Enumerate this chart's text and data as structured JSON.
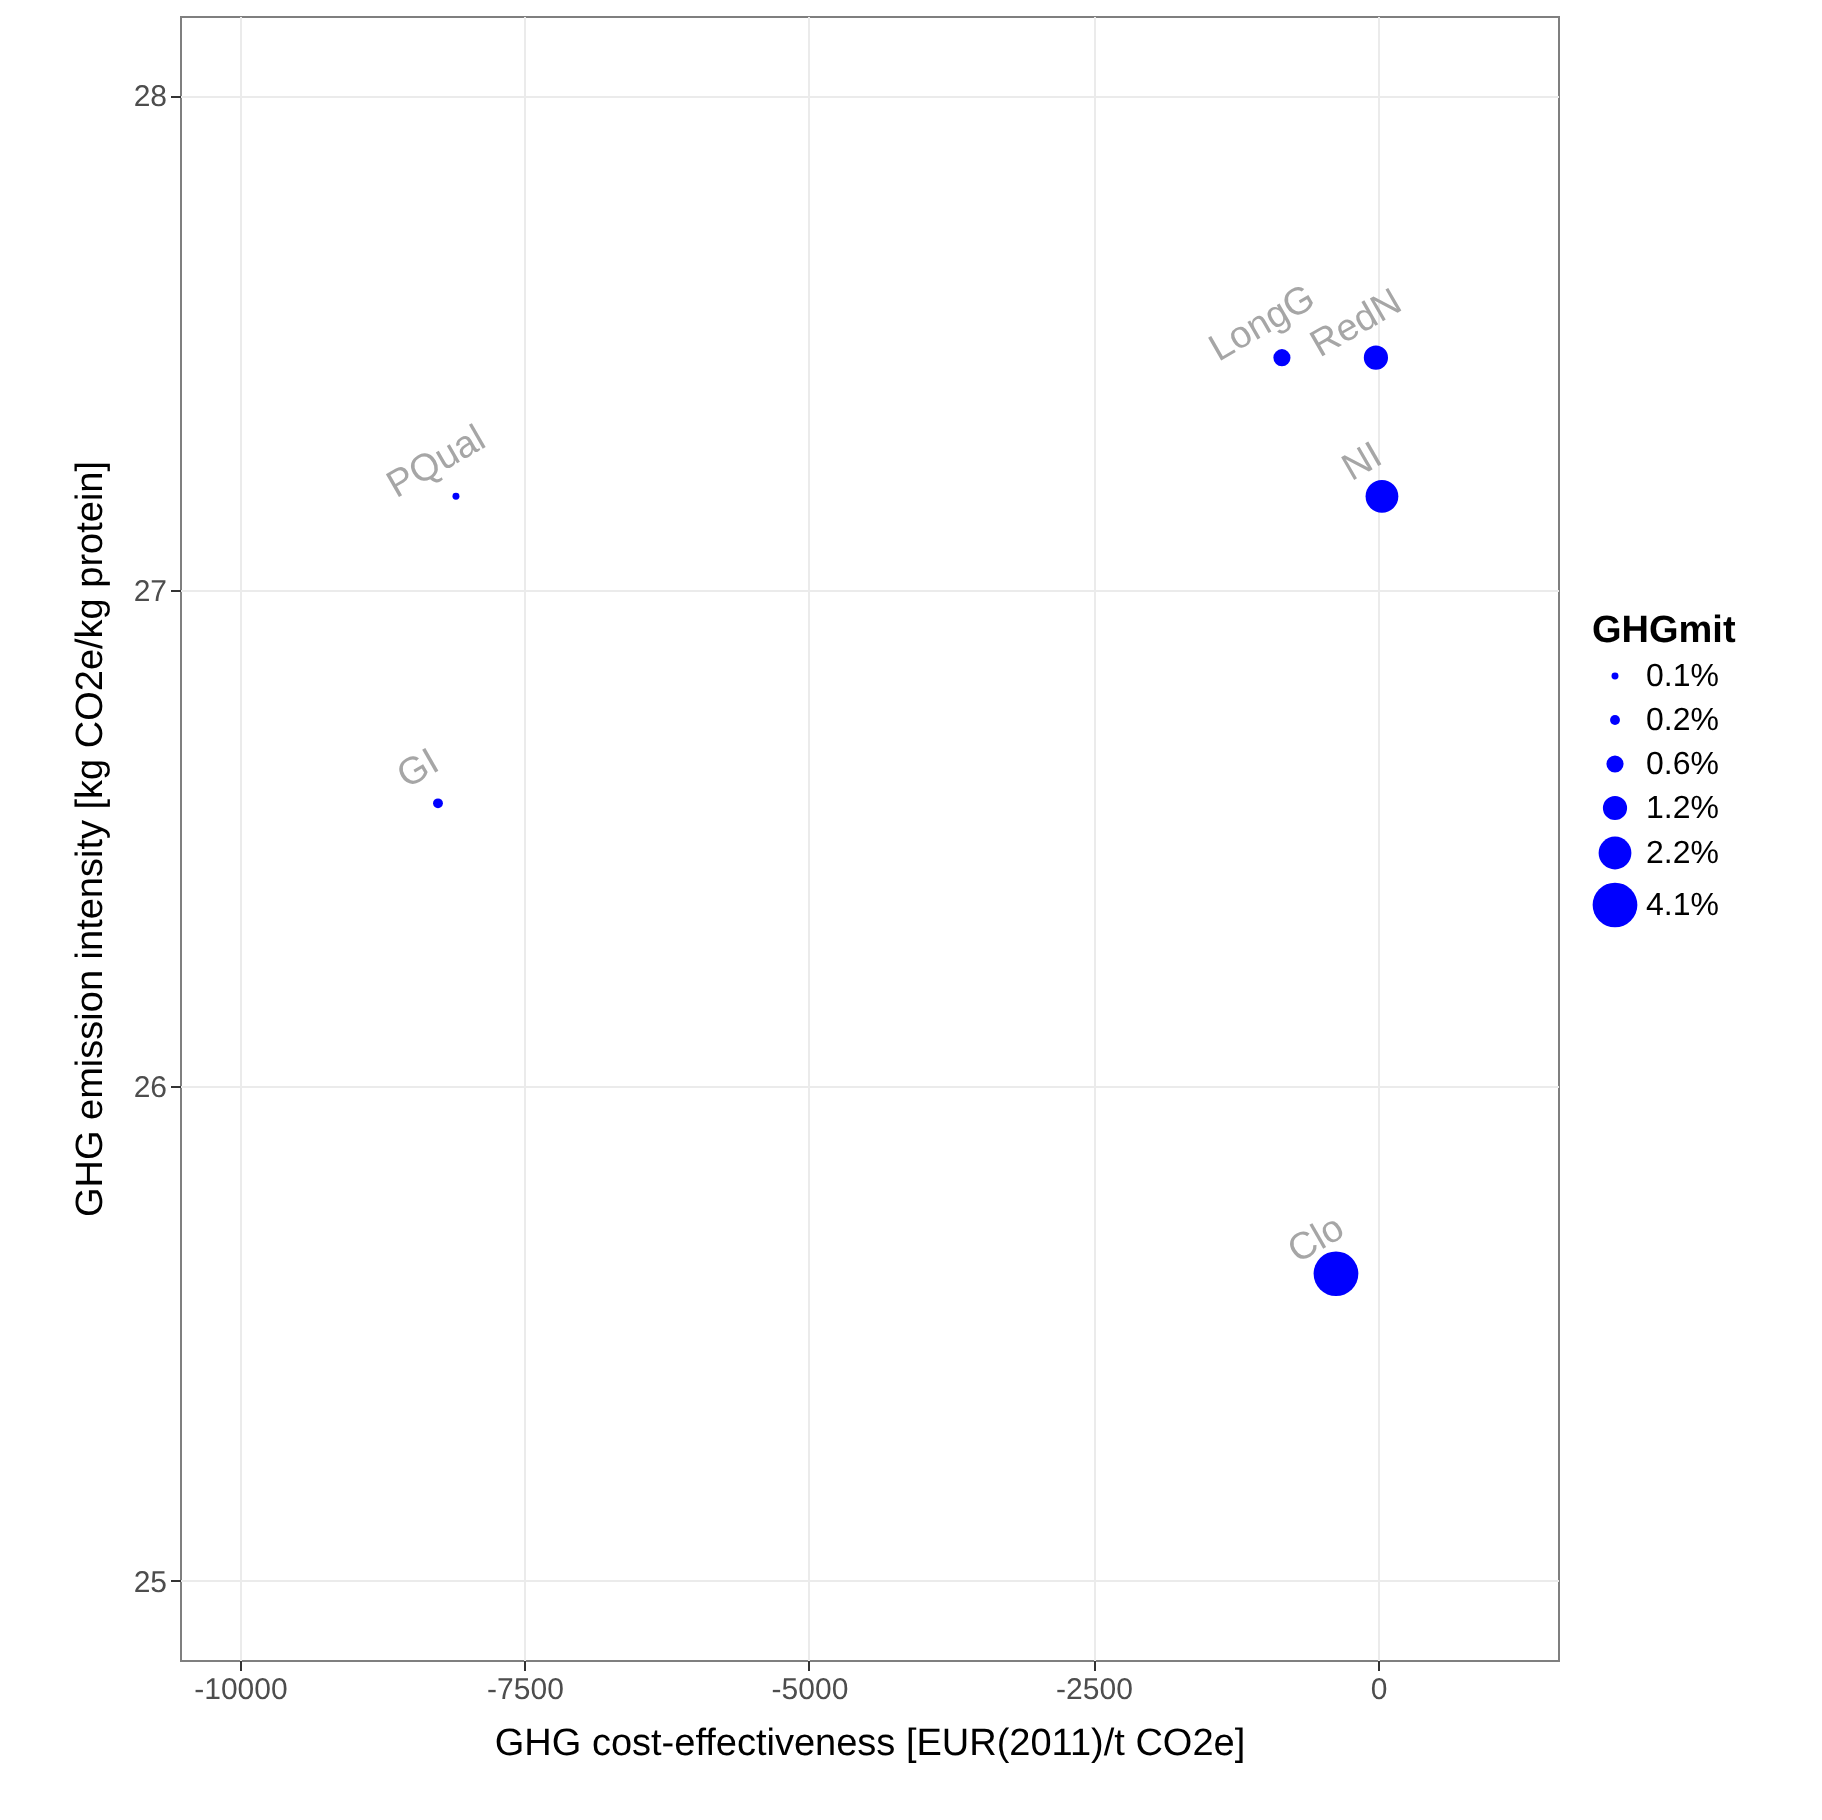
{
  "chart_data": {
    "type": "bubble",
    "xlabel": "GHG cost-effectiveness [EUR(2011)/t CO2e]",
    "ylabel": "GHG emission intensity [kg CO2e/kg protein]",
    "legend_title": "GHGmit",
    "grid": true,
    "xlim": [
      -10527,
      1582
    ],
    "xticks": [
      -10000,
      -7500,
      -5000,
      -2500,
      0
    ],
    "ylim": [
      24.84,
      28.16
    ],
    "yticks": [
      25,
      26,
      27,
      28
    ],
    "x": [
      -8102,
      -8260,
      -844,
      -18,
      35,
      -369
    ],
    "series": [
      {
        "color": "#0000ff",
        "values": [
          27.19,
          26.57,
          27.47,
          27.47,
          27.19,
          25.62
        ],
        "sizes": [
          0.1,
          0.2,
          0.6,
          1.2,
          2.2,
          4.1
        ]
      }
    ],
    "size_legend": [
      {
        "value": 0.1,
        "label": "0.1%"
      },
      {
        "value": 0.2,
        "label": "0.2%"
      },
      {
        "value": 0.6,
        "label": "0.6%"
      },
      {
        "value": 1.2,
        "label": "1.2%"
      },
      {
        "value": 2.2,
        "label": "2.2%"
      },
      {
        "value": 4.1,
        "label": "4.1%"
      }
    ],
    "annotations": [
      {
        "text": "PQual",
        "x": -8102,
        "y": 27.19
      },
      {
        "text": "GI",
        "x": -8260,
        "y": 26.57
      },
      {
        "text": "LongG",
        "x": -844,
        "y": 27.47
      },
      {
        "text": "RedN",
        "x": -18,
        "y": 27.47
      },
      {
        "text": "NI",
        "x": 35,
        "y": 27.19
      },
      {
        "text": "Clo",
        "x": -369,
        "y": 25.62
      }
    ]
  }
}
